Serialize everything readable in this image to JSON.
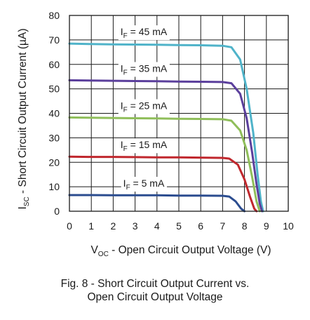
{
  "chart_data": {
    "type": "line",
    "title": "",
    "xlabel": {
      "main": "V",
      "sub": "OC",
      "rest": " - Open Circuit Output Voltage (V)"
    },
    "ylabel": {
      "main": "I",
      "sub": "SC",
      "rest": " - Short Circuit Output Current (µA)"
    },
    "xlim": [
      0,
      10
    ],
    "ylim": [
      0,
      80
    ],
    "xticks": [
      "0",
      "1",
      "2",
      "3",
      "4",
      "5",
      "6",
      "7",
      "8",
      "9",
      "10"
    ],
    "yticks": [
      "0",
      "10",
      "20",
      "30",
      "40",
      "50",
      "60",
      "70",
      "80"
    ],
    "grid": true,
    "series": [
      {
        "label": {
          "main": "I",
          "sub": "F",
          "rest": " = 45 mA"
        },
        "color": "#4fb3c9",
        "x": [
          0,
          1,
          2,
          3,
          4,
          5,
          6,
          7,
          7.4,
          7.8,
          8.1,
          8.4,
          8.6,
          8.75,
          8.85
        ],
        "y": [
          68.5,
          68.3,
          68.2,
          68.1,
          68.0,
          67.9,
          67.8,
          67.6,
          67.0,
          62,
          50,
          32,
          15,
          4,
          0
        ]
      },
      {
        "label": {
          "main": "I",
          "sub": "F",
          "rest": " = 35 mA"
        },
        "color": "#5b3f9c",
        "x": [
          0,
          1,
          2,
          3,
          4,
          5,
          6,
          7,
          7.4,
          7.8,
          8.1,
          8.35,
          8.55,
          8.7,
          8.8
        ],
        "y": [
          53.5,
          53.4,
          53.3,
          53.2,
          53.1,
          53.0,
          52.9,
          52.8,
          52.3,
          48,
          38,
          24,
          11,
          3,
          0
        ]
      },
      {
        "label": {
          "main": "I",
          "sub": "F",
          "rest": " = 25 mA"
        },
        "color": "#8fbe5a",
        "x": [
          0,
          1,
          2,
          3,
          4,
          5,
          6,
          7,
          7.4,
          7.8,
          8.1,
          8.35,
          8.55,
          8.7
        ],
        "y": [
          38.3,
          38.2,
          38.1,
          38.0,
          37.9,
          37.8,
          37.7,
          37.6,
          37.0,
          33,
          25,
          14,
          4,
          0
        ]
      },
      {
        "label": {
          "main": "I",
          "sub": "F",
          "rest": " = 15 mA"
        },
        "color": "#c0272d",
        "x": [
          0,
          1,
          2,
          3,
          4,
          5,
          6,
          7,
          7.3,
          7.7,
          8.0,
          8.25,
          8.45,
          8.55
        ],
        "y": [
          22.3,
          22.2,
          22.2,
          22.1,
          22.0,
          22.0,
          21.9,
          21.8,
          21.5,
          19,
          13,
          6,
          1,
          0
        ]
      },
      {
        "label": {
          "main": "I",
          "sub": "F",
          "rest": " = 5 mA"
        },
        "color": "#2b4c8f",
        "x": [
          0,
          1,
          2,
          3,
          4,
          5,
          6,
          7,
          7.3,
          7.6,
          7.85,
          8.0
        ],
        "y": [
          6.6,
          6.6,
          6.5,
          6.5,
          6.5,
          6.4,
          6.4,
          6.3,
          6.0,
          4,
          1,
          0
        ]
      }
    ]
  },
  "caption": {
    "line1": "Fig. 8 - Short Circuit Output Current vs.",
    "line2": "Open Circuit Output Voltage"
  }
}
